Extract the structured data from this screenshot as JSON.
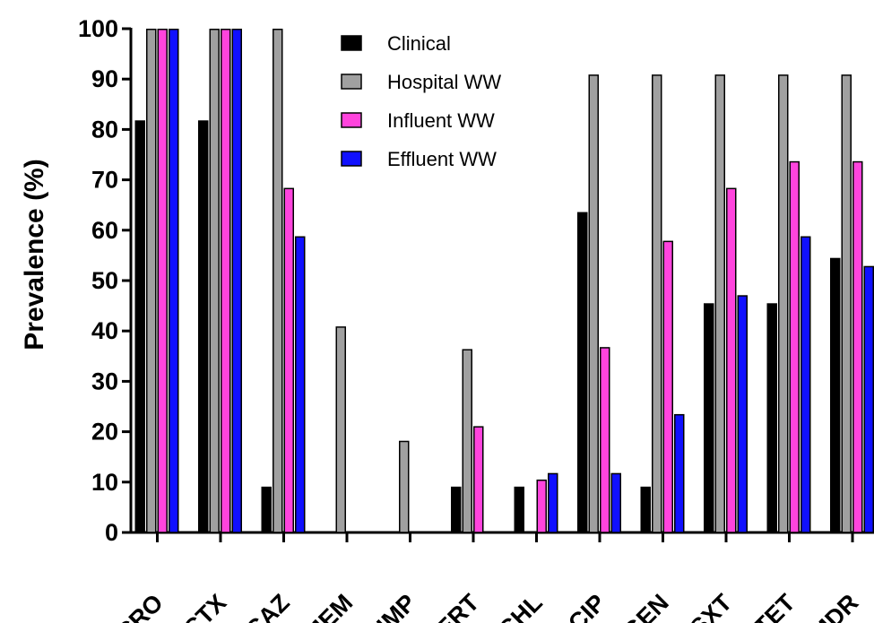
{
  "chart_data": {
    "type": "bar",
    "title": "",
    "xlabel": "",
    "ylabel": "Prevalence (%)",
    "ylim": [
      0,
      100
    ],
    "yticks": [
      0,
      10,
      20,
      30,
      40,
      50,
      60,
      70,
      80,
      90,
      100
    ],
    "grid": false,
    "legend_position": "top-center",
    "categories": [
      "CRO",
      "CTX",
      "CAZ",
      "MEM",
      "IMP",
      "ERT",
      "CHL",
      "CIP",
      "GEN",
      "SXT",
      "TET",
      "MDR"
    ],
    "series": [
      {
        "name": "Clinical",
        "color": "#000000",
        "values": [
          81.8,
          81.8,
          9.1,
          0,
          0,
          9.1,
          9.1,
          63.6,
          9.1,
          45.5,
          45.5,
          54.5
        ]
      },
      {
        "name": "Hospital WW",
        "color": "#a0a0a0",
        "values": [
          100,
          100,
          100,
          40.9,
          18.2,
          36.4,
          0,
          90.9,
          90.9,
          90.9,
          90.9,
          90.9
        ]
      },
      {
        "name": "Influent WW",
        "color": "#ff44dd",
        "values": [
          100,
          100,
          68.4,
          0,
          0,
          21.1,
          10.5,
          36.8,
          57.9,
          68.4,
          73.7,
          73.7
        ]
      },
      {
        "name": "Effluent WW",
        "color": "#1010ff",
        "values": [
          100,
          100,
          58.8,
          0,
          0,
          0,
          11.8,
          11.8,
          23.5,
          47.1,
          58.8,
          52.9
        ]
      }
    ]
  }
}
